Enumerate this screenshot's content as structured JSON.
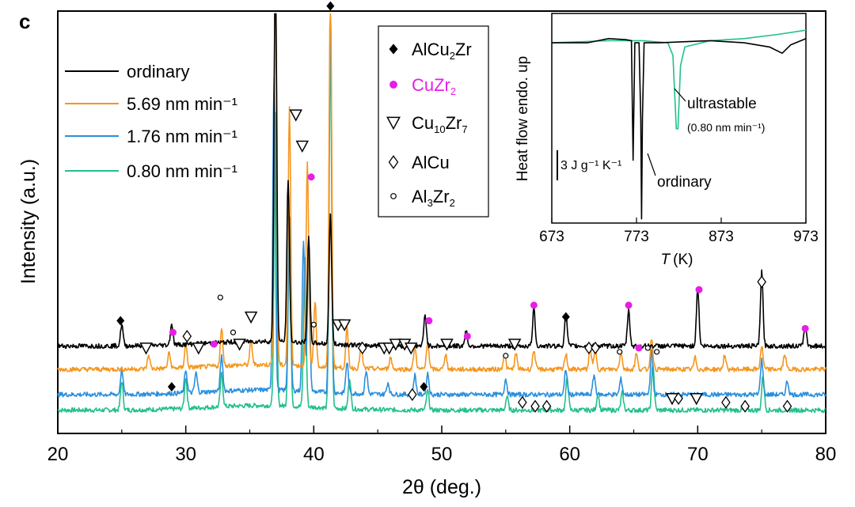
{
  "panel_label": "c",
  "chart_data": [
    {
      "type": "line",
      "xlabel": "2θ (deg.)",
      "ylabel": "Intensity (a.u.)",
      "xlim": [
        20,
        80
      ],
      "xticks": [
        "20",
        "30",
        "40",
        "50",
        "60",
        "70",
        "80"
      ],
      "y_ticks_shown": false,
      "legend_placement": "top-left",
      "series": [
        {
          "name": "ordinary",
          "color": "#000000",
          "baseline": 0.225,
          "peaks": [
            [
              25.0,
              0.055
            ],
            [
              28.9,
              0.055
            ],
            [
              37.0,
              1.06
            ],
            [
              38.0,
              0.42
            ],
            [
              39.6,
              0.27
            ],
            [
              41.3,
              0.33
            ],
            [
              48.7,
              0.08
            ],
            [
              51.9,
              0.04
            ],
            [
              57.2,
              0.095
            ],
            [
              59.7,
              0.085
            ],
            [
              64.6,
              0.09
            ],
            [
              70.0,
              0.15
            ],
            [
              75.0,
              0.19
            ],
            [
              78.4,
              0.05
            ]
          ]
        },
        {
          "name": "5.69 nm min⁻¹",
          "color": "#f5961e",
          "baseline": 0.165,
          "peaks": [
            [
              27.1,
              0.035
            ],
            [
              28.7,
              0.04
            ],
            [
              30.0,
              0.06
            ],
            [
              32.8,
              0.095
            ],
            [
              35.1,
              0.06
            ],
            [
              37.0,
              1.05
            ],
            [
              38.1,
              0.66
            ],
            [
              39.5,
              0.52
            ],
            [
              40.1,
              0.17
            ],
            [
              41.3,
              0.99
            ],
            [
              42.6,
              0.1
            ],
            [
              43.7,
              0.06
            ],
            [
              46.0,
              0.03
            ],
            [
              47.9,
              0.06
            ],
            [
              48.9,
              0.07
            ],
            [
              50.3,
              0.04
            ],
            [
              54.9,
              0.04
            ],
            [
              55.8,
              0.04
            ],
            [
              57.2,
              0.05
            ],
            [
              59.7,
              0.04
            ],
            [
              61.6,
              0.055
            ],
            [
              62.0,
              0.05
            ],
            [
              64.0,
              0.045
            ],
            [
              65.2,
              0.04
            ],
            [
              66.4,
              0.08
            ],
            [
              69.8,
              0.03
            ],
            [
              72.1,
              0.035
            ],
            [
              75.0,
              0.06
            ],
            [
              76.8,
              0.04
            ]
          ]
        },
        {
          "name": "1.76 nm min⁻¹",
          "color": "#2b8fdc",
          "baseline": 0.1,
          "peaks": [
            [
              25.0,
              0.065
            ],
            [
              30.0,
              0.06
            ],
            [
              30.8,
              0.05
            ],
            [
              32.8,
              0.09
            ],
            [
              36.9,
              0.81
            ],
            [
              38.1,
              0.45
            ],
            [
              39.2,
              0.39
            ],
            [
              39.6,
              0.34
            ],
            [
              41.3,
              0.98
            ],
            [
              42.6,
              0.08
            ],
            [
              44.1,
              0.06
            ],
            [
              45.8,
              0.03
            ],
            [
              47.9,
              0.05
            ],
            [
              48.9,
              0.055
            ],
            [
              55.0,
              0.04
            ],
            [
              59.7,
              0.065
            ],
            [
              61.9,
              0.05
            ],
            [
              64.0,
              0.04
            ],
            [
              66.4,
              0.11
            ],
            [
              75.0,
              0.09
            ],
            [
              77.0,
              0.035
            ]
          ]
        },
        {
          "name": "0.80 nm min⁻¹",
          "color": "#22c08a",
          "baseline": 0.06,
          "peaks": [
            [
              25.0,
              0.075
            ],
            [
              30.0,
              0.08
            ],
            [
              32.8,
              0.085
            ],
            [
              37.0,
              0.75
            ],
            [
              38.1,
              0.45
            ],
            [
              39.3,
              0.38
            ],
            [
              41.3,
              0.92
            ],
            [
              42.8,
              0.08
            ],
            [
              48.9,
              0.05
            ],
            [
              55.1,
              0.035
            ],
            [
              59.8,
              0.085
            ],
            [
              62.2,
              0.04
            ],
            [
              64.1,
              0.045
            ],
            [
              66.5,
              0.12
            ],
            [
              75.1,
              0.09
            ]
          ]
        }
      ],
      "phase_legend": [
        {
          "marker": "filled-diamond",
          "name_base": "AlCu",
          "sub": "2",
          "name_tail": "Zr",
          "color": "#000000"
        },
        {
          "marker": "magenta-dot",
          "name_base": "CuZr",
          "sub": "2",
          "name_tail": "",
          "color": "#e61ee6"
        },
        {
          "marker": "open-down-triangle",
          "name_base": "Cu",
          "sub": "10",
          "name_tail": "Zr",
          "sub2": "7",
          "color": "#000000"
        },
        {
          "marker": "open-diamond",
          "name_base": "AlCu",
          "sub": "",
          "name_tail": "",
          "color": "#000000"
        },
        {
          "marker": "open-circle",
          "name_base": "Al",
          "sub": "3",
          "name_tail": "Zr",
          "sub2": "2",
          "color": "#000000"
        }
      ],
      "peak_markers": [
        {
          "phase": "AlCu2Zr",
          "positions": [
            [
              24.9,
              0.29
            ],
            [
              28.9,
              0.12
            ],
            [
              41.3,
              1.1
            ],
            [
              48.6,
              0.12
            ],
            [
              59.7,
              0.3
            ]
          ]
        },
        {
          "phase": "CuZr2",
          "positions": [
            [
              29.0,
              0.26
            ],
            [
              32.2,
              0.23
            ],
            [
              37.0,
              1.36
            ],
            [
              39.8,
              0.66
            ],
            [
              49.0,
              0.29
            ],
            [
              52.0,
              0.25
            ],
            [
              57.2,
              0.33
            ],
            [
              59.5,
              0.0
            ],
            [
              64.6,
              0.33
            ],
            [
              65.4,
              0.22
            ],
            [
              70.1,
              0.37
            ],
            [
              78.4,
              0.27
            ]
          ]
        },
        {
          "phase": "Cu10Zr7",
          "positions": [
            [
              26.9,
              0.22
            ],
            [
              31.0,
              0.22
            ],
            [
              34.2,
              0.23
            ],
            [
              35.1,
              0.3
            ],
            [
              37.0,
              1.3
            ],
            [
              38.6,
              0.82
            ],
            [
              39.1,
              0.74
            ],
            [
              41.9,
              0.28
            ],
            [
              42.4,
              0.28
            ],
            [
              45.5,
              0.22
            ],
            [
              45.9,
              0.22
            ],
            [
              46.4,
              0.23
            ],
            [
              47.1,
              0.23
            ],
            [
              47.6,
              0.22
            ],
            [
              50.4,
              0.23
            ],
            [
              55.7,
              0.23
            ],
            [
              68.0,
              0.09
            ],
            [
              69.9,
              0.09
            ]
          ]
        },
        {
          "phase": "AlCu",
          "positions": [
            [
              30.1,
              0.25
            ],
            [
              43.8,
              0.22
            ],
            [
              47.7,
              0.1
            ],
            [
              56.3,
              0.08
            ],
            [
              57.3,
              0.07
            ],
            [
              58.2,
              0.07
            ],
            [
              61.5,
              0.22
            ],
            [
              62.0,
              0.22
            ],
            [
              68.5,
              0.09
            ],
            [
              72.2,
              0.08
            ],
            [
              73.7,
              0.07
            ],
            [
              75.0,
              0.39
            ],
            [
              77.0,
              0.07
            ]
          ]
        },
        {
          "phase": "Al3Zr2",
          "positions": [
            [
              32.7,
              0.35
            ],
            [
              33.7,
              0.26
            ],
            [
              40.0,
              0.28
            ],
            [
              55.0,
              0.2
            ],
            [
              63.9,
              0.21
            ],
            [
              66.1,
              0.22
            ],
            [
              66.8,
              0.21
            ]
          ]
        }
      ]
    },
    {
      "type": "line",
      "inset": true,
      "ylabel": "Heat flow endo. up",
      "xlabel": "T (K)",
      "xlabel_italic": "T",
      "xlabel_unit": "(K)",
      "xlim": [
        673,
        973
      ],
      "xticks": [
        "673",
        "773",
        "873",
        "973"
      ],
      "scale_bar_label": "3 J g⁻¹ K⁻¹",
      "series": [
        {
          "name": "ordinary",
          "color": "#000000",
          "points": [
            [
              673,
              0.86
            ],
            [
              715,
              0.86
            ],
            [
              740,
              0.88
            ],
            [
              760,
              0.875
            ],
            [
              767,
              0.87
            ],
            [
              769,
              0.3
            ],
            [
              771,
              0.86
            ],
            [
              776,
              0.86
            ],
            [
              778,
              0.5
            ],
            [
              779,
              0.02
            ],
            [
              780,
              0.5
            ],
            [
              782,
              0.86
            ],
            [
              800,
              0.86
            ],
            [
              860,
              0.87
            ],
            [
              900,
              0.86
            ],
            [
              930,
              0.84
            ],
            [
              945,
              0.81
            ],
            [
              955,
              0.85
            ],
            [
              973,
              0.88
            ]
          ]
        },
        {
          "name": "ultrastable",
          "color": "#22c08a",
          "points": [
            [
              673,
              0.86
            ],
            [
              740,
              0.87
            ],
            [
              780,
              0.87
            ],
            [
              810,
              0.86
            ],
            [
              816,
              0.8
            ],
            [
              820,
              0.45
            ],
            [
              822,
              0.45
            ],
            [
              825,
              0.75
            ],
            [
              830,
              0.84
            ],
            [
              860,
              0.87
            ],
            [
              900,
              0.88
            ],
            [
              940,
              0.9
            ],
            [
              973,
              0.92
            ]
          ]
        }
      ],
      "annotations": [
        {
          "text": "ultrastable",
          "sub_text": "(0.80 nm min⁻¹)",
          "arrow_to": [
            835,
            0.72
          ]
        },
        {
          "text": "ordinary",
          "arrow_to": [
            781,
            0.45
          ]
        }
      ]
    }
  ]
}
